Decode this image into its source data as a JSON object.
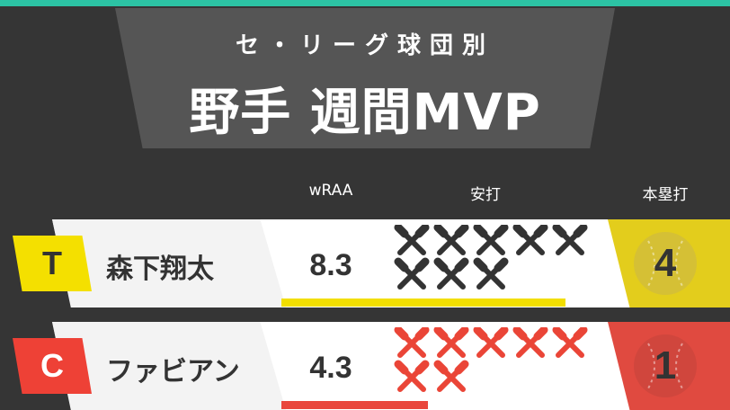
{
  "header": {
    "subtitle": "セ・リーグ球団別",
    "title": "野手 週間MVP"
  },
  "columns": {
    "wraa": "wRAA",
    "hits": "安打",
    "home_runs": "本塁打"
  },
  "players": [
    {
      "team": "T",
      "name": "森下翔太",
      "wraa": "8.3",
      "wraa_fraction": 0.93,
      "hits": 8,
      "home_runs": "4",
      "badge_color": "#f4e000",
      "badge_text_color": "#333333",
      "bar_color": "#f2de00",
      "hit_icon_color": "#333333",
      "hr_panel_color": "#e3cd1c",
      "hr_ball_color": "#d5c035"
    },
    {
      "team": "C",
      "name": "ファビアン",
      "wraa": "4.3",
      "wraa_fraction": 0.48,
      "hits": 7,
      "home_runs": "1",
      "badge_color": "#ee4136",
      "badge_text_color": "#ffffff",
      "bar_color": "#e9463c",
      "hit_icon_color": "#ea4537",
      "hr_panel_color": "#e04a40",
      "hr_ball_color": "#d0463d"
    }
  ],
  "icons": {
    "hit": "crossed-bats-icon",
    "home_run": "baseball-icon"
  }
}
